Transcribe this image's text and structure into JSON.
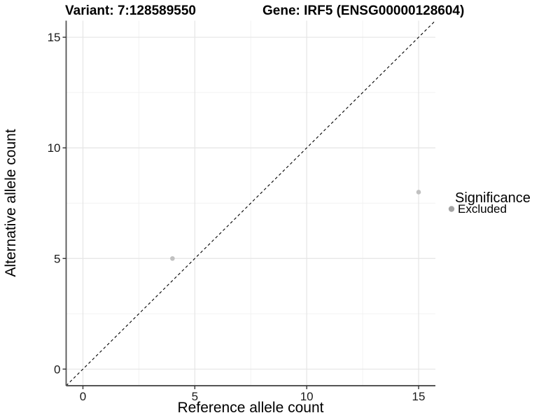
{
  "chart_data": {
    "type": "scatter",
    "title_left": "Variant: 7:128589550",
    "title_right": "Gene: IRF5 (ENSG00000128604)",
    "xlabel": "Reference allele count",
    "ylabel": "Alternative allele count",
    "xlim": [
      -0.75,
      15.75
    ],
    "ylim": [
      -0.75,
      15.75
    ],
    "x_major_ticks": [
      0,
      5,
      10,
      15
    ],
    "y_major_ticks": [
      0,
      5,
      10,
      15
    ],
    "x_minor_ticks": [
      2.5,
      7.5,
      12.5
    ],
    "y_minor_ticks": [
      2.5,
      7.5,
      12.5
    ],
    "grid": true,
    "identity_line": {
      "equation": "y = x",
      "style": "dashed",
      "color": "#000000"
    },
    "series": [
      {
        "name": "Excluded",
        "color": "#c1c1c1",
        "point_radius": 3.3,
        "points": [
          [
            4,
            5
          ],
          [
            15,
            8
          ]
        ]
      }
    ],
    "legend": {
      "position": "right",
      "title": "Significance",
      "entries": [
        {
          "label": "Excluded",
          "color": "#a4a4a4"
        }
      ]
    },
    "colors": {
      "background": "#ffffff",
      "grid_major": "#e5e5e5",
      "grid_minor": "#f2f2f2",
      "axis_line": "#555555",
      "tick_mark": "#333333"
    }
  }
}
